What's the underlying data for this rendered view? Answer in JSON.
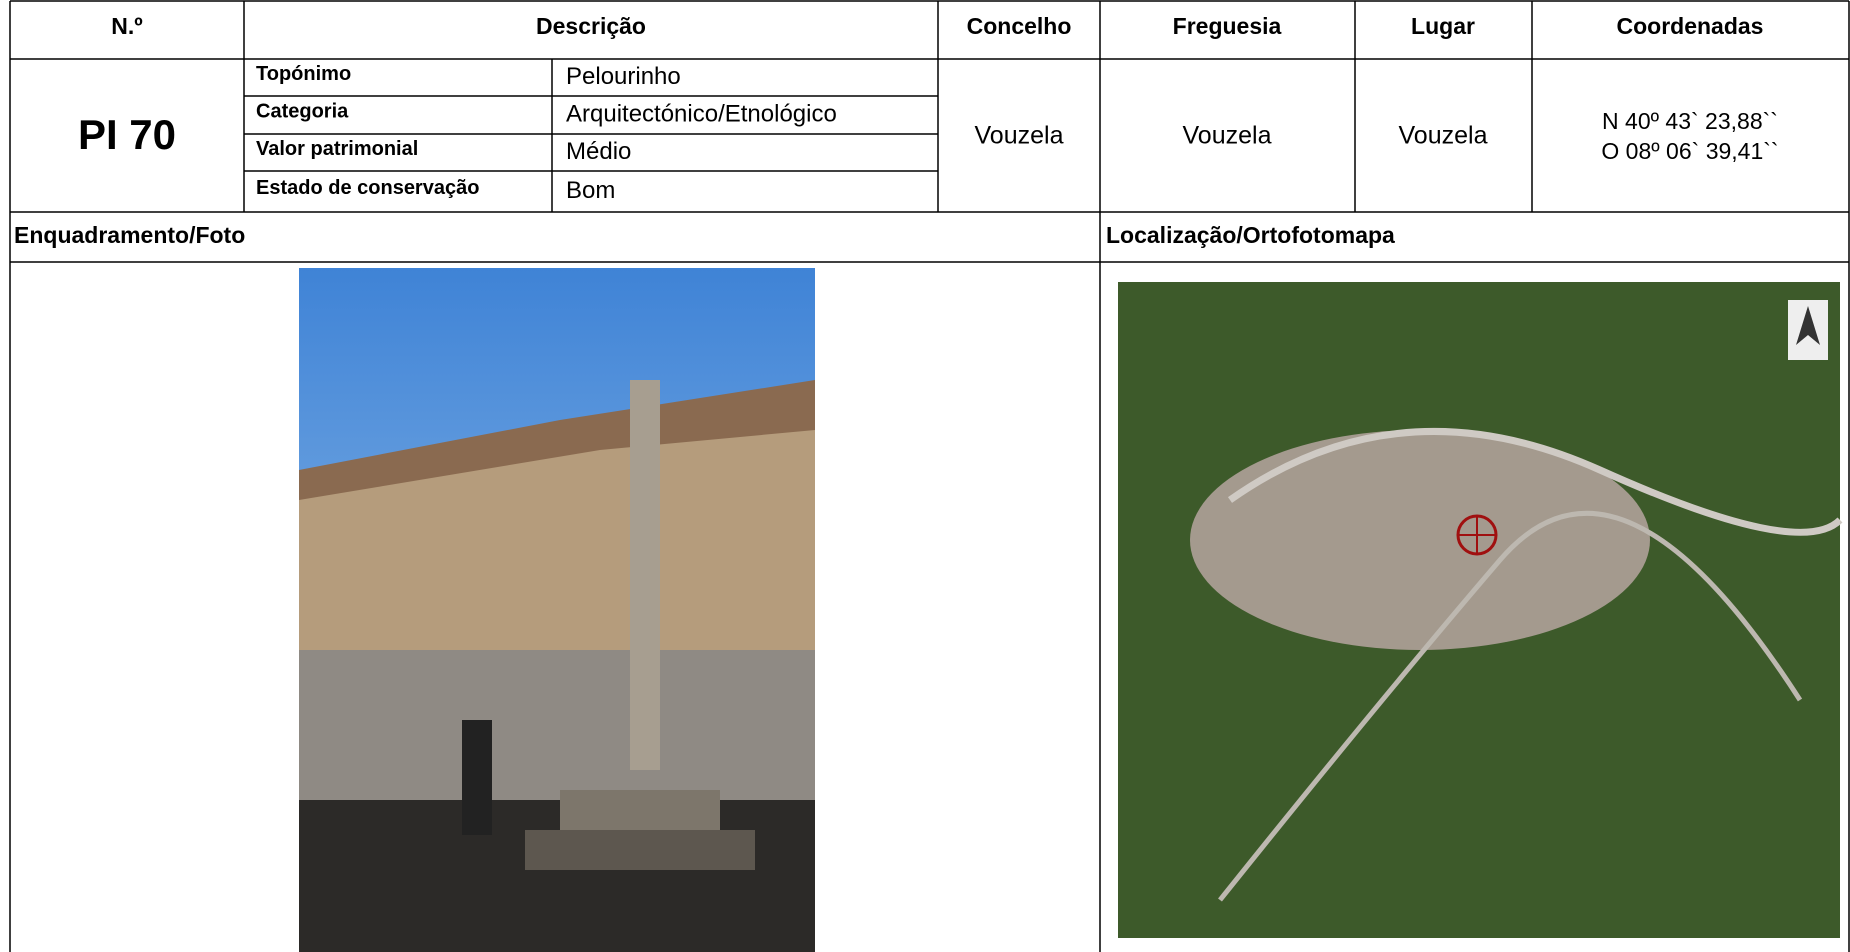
{
  "header": {
    "numero": "N.º",
    "descricao": "Descrição",
    "concelho": "Concelho",
    "freguesia": "Freguesia",
    "lugar": "Lugar",
    "coordenadas": "Coordenadas"
  },
  "record": {
    "numero": "PI 70",
    "fields": [
      {
        "label": "Topónimo",
        "value": "Pelourinho"
      },
      {
        "label": "Categoria",
        "value": "Arquitectónico/Etnológico"
      },
      {
        "label": "Valor patrimonial",
        "value": "Médio"
      },
      {
        "label": "Estado de conservação",
        "value": "Bom"
      }
    ],
    "concelho": "Vouzela",
    "freguesia": "Vouzela",
    "lugar": "Vouzela",
    "coordenadas": [
      "N 40º 43` 23,88``",
      "O 08º 06` 39,41``"
    ]
  },
  "sections": {
    "foto": "Enquadramento/Foto",
    "mapa": "Localização/Ortofotomapa"
  }
}
